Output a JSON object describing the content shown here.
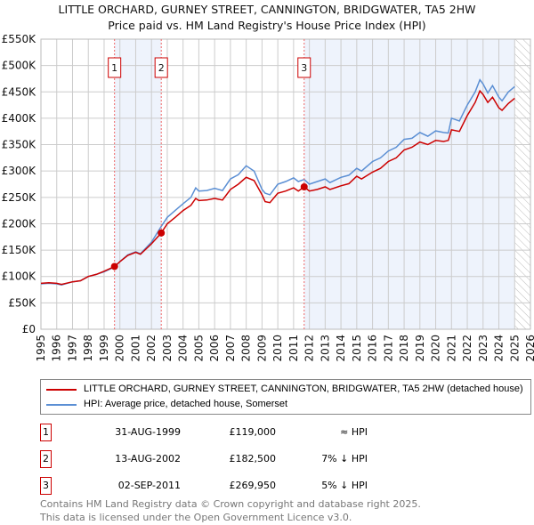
{
  "title_line1": "LITTLE ORCHARD, GURNEY STREET, CANNINGTON, BRIDGWATER, TA5 2HW",
  "title_line2": "Price paid vs. HM Land Registry's House Price Index (HPI)",
  "colors": {
    "property": "#cc0000",
    "hpi": "#5b8fd4",
    "shade": "#eef3fc"
  },
  "chart_data": {
    "type": "line",
    "xlim": [
      1995,
      2026
    ],
    "ylim": [
      0,
      550000
    ],
    "yticks": [
      0,
      50000,
      100000,
      150000,
      200000,
      250000,
      300000,
      350000,
      400000,
      450000,
      500000,
      550000
    ],
    "ytick_labels": [
      "£0",
      "£50K",
      "£100K",
      "£150K",
      "£200K",
      "£250K",
      "£300K",
      "£350K",
      "£400K",
      "£450K",
      "£500K",
      "£550K"
    ],
    "xtick_labels": [
      "1995",
      "1996",
      "1997",
      "1998",
      "1999",
      "2000",
      "2001",
      "2002",
      "2003",
      "2004",
      "2005",
      "2006",
      "2007",
      "2008",
      "2009",
      "2010",
      "2011",
      "2012",
      "2013",
      "2014",
      "2015",
      "2016",
      "2017",
      "2018",
      "2019",
      "2020",
      "2021",
      "2022",
      "2023",
      "2024",
      "2025",
      "2026"
    ],
    "forecast_start": 2025.0,
    "series": [
      {
        "name": "LITTLE ORCHARD, GURNEY STREET, CANNINGTON, BRIDGWATER, TA5 2HW (detached house)",
        "color": "#cc0000",
        "x": [
          1995,
          1995.5,
          1996,
          1996.3,
          1997,
          1997.5,
          1998,
          1998.5,
          1999,
          1999.66,
          2000,
          2000.5,
          2001,
          2001.3,
          2002,
          2002.62,
          2003,
          2003.5,
          2004,
          2004.5,
          2004.8,
          2005,
          2005.5,
          2006,
          2006.5,
          2007,
          2007.5,
          2008,
          2008.5,
          2009,
          2009.2,
          2009.5,
          2010,
          2010.5,
          2011,
          2011.3,
          2011.67,
          2012,
          2012.5,
          2013,
          2013.3,
          2014,
          2014.5,
          2015,
          2015.3,
          2016,
          2016.5,
          2017,
          2017.5,
          2018,
          2018.5,
          2019,
          2019.5,
          2020,
          2020.5,
          2020.8,
          2021,
          2021.5,
          2022,
          2022.5,
          2022.8,
          2023,
          2023.3,
          2023.6,
          2024,
          2024.2,
          2024.6,
          2025
        ],
        "y": [
          87000,
          88000,
          87000,
          85000,
          90000,
          92000,
          100000,
          104000,
          110000,
          119000,
          128000,
          140000,
          146000,
          142000,
          162000,
          182500,
          200000,
          212000,
          225000,
          235000,
          248000,
          244000,
          245000,
          248000,
          245000,
          265000,
          275000,
          288000,
          282000,
          255000,
          242000,
          240000,
          258000,
          262000,
          268000,
          262000,
          269950,
          262000,
          265000,
          270000,
          265000,
          272000,
          276000,
          290000,
          285000,
          298000,
          305000,
          318000,
          325000,
          340000,
          345000,
          355000,
          350000,
          358000,
          356000,
          358000,
          378000,
          375000,
          405000,
          430000,
          452000,
          445000,
          430000,
          440000,
          420000,
          415000,
          428000,
          438000
        ]
      },
      {
        "name": "HPI: Average price, detached house, Somerset",
        "color": "#5b8fd4",
        "x": [
          1995,
          1995.5,
          1996,
          1996.3,
          1997,
          1997.5,
          1998,
          1998.5,
          1999,
          1999.66,
          2000,
          2000.5,
          2001,
          2001.3,
          2002,
          2002.62,
          2003,
          2003.5,
          2004,
          2004.5,
          2004.8,
          2005,
          2005.5,
          2006,
          2006.5,
          2007,
          2007.5,
          2008,
          2008.5,
          2009,
          2009.2,
          2009.5,
          2010,
          2010.5,
          2011,
          2011.3,
          2011.67,
          2012,
          2012.5,
          2013,
          2013.3,
          2014,
          2014.5,
          2015,
          2015.3,
          2016,
          2016.5,
          2017,
          2017.5,
          2018,
          2018.5,
          2019,
          2019.5,
          2020,
          2020.5,
          2020.8,
          2021,
          2021.5,
          2022,
          2022.5,
          2022.8,
          2023,
          2023.3,
          2023.6,
          2024,
          2024.2,
          2024.6,
          2025
        ],
        "y": [
          86000,
          87000,
          86000,
          84000,
          90000,
          92000,
          100000,
          104000,
          109000,
          118000,
          128000,
          141000,
          147000,
          143000,
          165000,
          195000,
          212000,
          225000,
          238000,
          250000,
          268000,
          262000,
          263000,
          267000,
          263000,
          285000,
          293000,
          310000,
          300000,
          265000,
          258000,
          255000,
          275000,
          280000,
          287000,
          280000,
          284000,
          275000,
          280000,
          285000,
          278000,
          288000,
          292000,
          305000,
          300000,
          318000,
          325000,
          338000,
          345000,
          360000,
          362000,
          373000,
          366000,
          376000,
          373000,
          372000,
          400000,
          395000,
          425000,
          450000,
          473000,
          465000,
          448000,
          462000,
          440000,
          433000,
          450000,
          460000
        ]
      }
    ],
    "sales": [
      {
        "id": "1",
        "x": 1999.66,
        "y": 119000,
        "date": "31-AUG-1999",
        "price": "£119,000",
        "hpi": "≈ HPI"
      },
      {
        "id": "2",
        "x": 2002.62,
        "y": 182500,
        "date": "13-AUG-2002",
        "price": "£182,500",
        "hpi": "7% ↓ HPI"
      },
      {
        "id": "3",
        "x": 2011.67,
        "y": 269950,
        "date": "02-SEP-2011",
        "price": "£269,950",
        "hpi": "5% ↓ HPI"
      }
    ]
  },
  "legend": {
    "property": "LITTLE ORCHARD, GURNEY STREET, CANNINGTON, BRIDGWATER, TA5 2HW (detached house)",
    "hpi": "HPI: Average price, detached house, Somerset"
  },
  "footer": {
    "line1": "Contains HM Land Registry data © Crown copyright and database right 2025.",
    "line2": "This data is licensed under the Open Government Licence v3.0."
  }
}
